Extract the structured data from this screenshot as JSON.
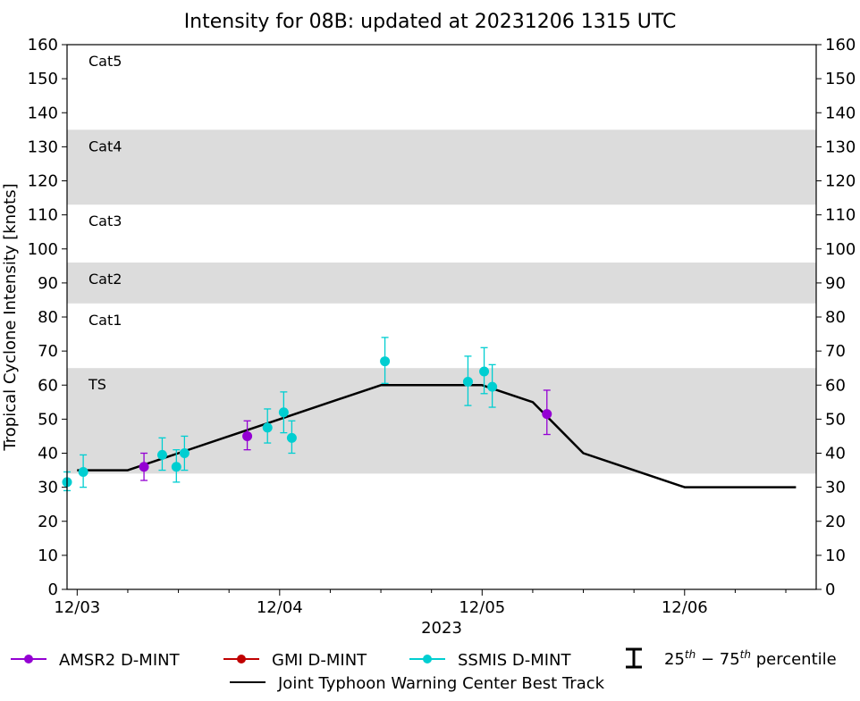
{
  "chart_data": {
    "type": "scatter",
    "title": "Intensity for 08B: updated at 20231206 1315 UTC",
    "ylabel": "Tropical Cyclone Intensity [knots]",
    "xlabel": "2023",
    "ylim": [
      0,
      160
    ],
    "xlim_days": [
      -0.05,
      3.65
    ],
    "yticks": [
      0,
      10,
      20,
      30,
      40,
      50,
      60,
      70,
      80,
      90,
      100,
      110,
      120,
      130,
      140,
      150,
      160
    ],
    "yticklabels": [
      "0",
      "10",
      "20",
      "30",
      "40",
      "50",
      "60",
      "70",
      "80",
      "90",
      "100",
      "110",
      "120",
      "130",
      "140",
      "150",
      "160"
    ],
    "xticks": [
      {
        "day": 0,
        "label": "12/03"
      },
      {
        "day": 1,
        "label": "12/04"
      },
      {
        "day": 2,
        "label": "12/05"
      },
      {
        "day": 3,
        "label": "12/06"
      }
    ],
    "minor_xticks": [
      0.25,
      0.5,
      0.75,
      1.25,
      1.5,
      1.75,
      2.25,
      2.5,
      2.75,
      3.25,
      3.5
    ],
    "category_bands": [
      {
        "label": "TS",
        "min": 34,
        "max": 65,
        "shaded": true
      },
      {
        "label": "Cat1",
        "min": 65,
        "max": 84,
        "shaded": false
      },
      {
        "label": "Cat2",
        "min": 84,
        "max": 96,
        "shaded": true
      },
      {
        "label": "Cat3",
        "min": 96,
        "max": 113,
        "shaded": false
      },
      {
        "label": "Cat4",
        "min": 113,
        "max": 135,
        "shaded": true
      },
      {
        "label": "Cat5",
        "min": 135,
        "max": 160,
        "shaded": false
      }
    ],
    "best_track": {
      "name": "Joint Typhoon Warning Center Best Track",
      "color": "#000000",
      "points": [
        {
          "day": 0,
          "value": 35
        },
        {
          "day": 0.25,
          "value": 35
        },
        {
          "day": 0.5,
          "value": 40
        },
        {
          "day": 0.75,
          "value": 45
        },
        {
          "day": 1.0,
          "value": 50
        },
        {
          "day": 1.25,
          "value": 55
        },
        {
          "day": 1.5,
          "value": 60
        },
        {
          "day": 1.75,
          "value": 60
        },
        {
          "day": 2.0,
          "value": 60
        },
        {
          "day": 2.25,
          "value": 55
        },
        {
          "day": 2.5,
          "value": 40
        },
        {
          "day": 2.75,
          "value": 35
        },
        {
          "day": 3.0,
          "value": 30
        },
        {
          "day": 3.25,
          "value": 30
        },
        {
          "day": 3.55,
          "value": 30
        }
      ]
    },
    "series": [
      {
        "name": "AMSR2 D-MINT",
        "color": "#9400d3",
        "points": [
          {
            "day": 0.33,
            "value": 36,
            "p25": 32,
            "p75": 40
          },
          {
            "day": 0.84,
            "value": 45,
            "p25": 41,
            "p75": 49.5
          },
          {
            "day": 2.32,
            "value": 51.5,
            "p25": 45.5,
            "p75": 58.5
          }
        ]
      },
      {
        "name": "GMI D-MINT",
        "color": "#c00000",
        "points": []
      },
      {
        "name": "SSMIS D-MINT",
        "color": "#00ced1",
        "points": [
          {
            "day": -0.05,
            "value": 31.5,
            "p25": 29,
            "p75": 34.5
          },
          {
            "day": 0.03,
            "value": 34.5,
            "p25": 30,
            "p75": 39.5
          },
          {
            "day": 0.42,
            "value": 39.5,
            "p25": 35,
            "p75": 44.5
          },
          {
            "day": 0.49,
            "value": 36,
            "p25": 31.5,
            "p75": 41
          },
          {
            "day": 0.53,
            "value": 40,
            "p25": 35,
            "p75": 45
          },
          {
            "day": 0.94,
            "value": 47.5,
            "p25": 43,
            "p75": 53
          },
          {
            "day": 1.02,
            "value": 52,
            "p25": 46,
            "p75": 58
          },
          {
            "day": 1.06,
            "value": 44.5,
            "p25": 40,
            "p75": 49.5
          },
          {
            "day": 1.52,
            "value": 67,
            "p25": 60.5,
            "p75": 74
          },
          {
            "day": 1.93,
            "value": 61,
            "p25": 54,
            "p75": 68.5
          },
          {
            "day": 2.01,
            "value": 64,
            "p25": 57.5,
            "p75": 71
          },
          {
            "day": 2.05,
            "value": 59.5,
            "p25": 53.5,
            "p75": 66
          }
        ]
      }
    ],
    "legend": {
      "placement": "bottom",
      "entries": [
        {
          "label": "AMSR2 D-MINT",
          "kind": "marker-line",
          "color": "#9400d3"
        },
        {
          "label": "GMI D-MINT",
          "kind": "marker-line",
          "color": "#c00000"
        },
        {
          "label": "SSMIS D-MINT",
          "kind": "marker-line",
          "color": "#00ced1"
        },
        {
          "label_base": "25",
          "label_sup1": "th",
          "label_mid": " − 75",
          "label_sup2": "th",
          "label_tail": " percentile",
          "kind": "errorbar",
          "color": "#000000"
        },
        {
          "label": "Joint Typhoon Warning Center Best Track",
          "kind": "line",
          "color": "#000000"
        }
      ]
    }
  }
}
